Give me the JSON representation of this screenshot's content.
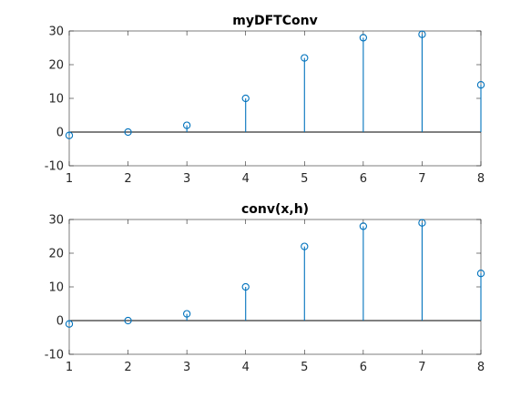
{
  "chart_data": [
    {
      "type": "stem",
      "title": "myDFTConv",
      "x": [
        1,
        2,
        3,
        4,
        5,
        6,
        7,
        8
      ],
      "values": [
        -1,
        0,
        2,
        10,
        22,
        28,
        29,
        14
      ],
      "xlim": [
        1,
        8
      ],
      "ylim": [
        -10,
        30
      ],
      "xticks": [
        "1",
        "2",
        "3",
        "4",
        "5",
        "6",
        "7",
        "8"
      ],
      "yticks": [
        "-10",
        "0",
        "10",
        "20",
        "30"
      ],
      "grid": false,
      "color": "#0072BD",
      "marker": "circle"
    },
    {
      "type": "stem",
      "title": "conv(x,h)",
      "x": [
        1,
        2,
        3,
        4,
        5,
        6,
        7,
        8
      ],
      "values": [
        -1,
        0,
        2,
        10,
        22,
        28,
        29,
        14
      ],
      "xlim": [
        1,
        8
      ],
      "ylim": [
        -10,
        30
      ],
      "xticks": [
        "1",
        "2",
        "3",
        "4",
        "5",
        "6",
        "7",
        "8"
      ],
      "yticks": [
        "-10",
        "0",
        "10",
        "20",
        "30"
      ],
      "grid": false,
      "color": "#0072BD",
      "marker": "circle"
    }
  ]
}
